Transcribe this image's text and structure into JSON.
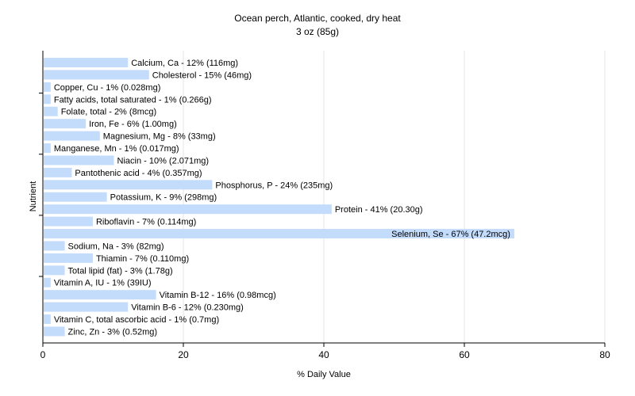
{
  "chart_data": {
    "type": "bar",
    "orientation": "horizontal",
    "title": "Ocean perch, Atlantic, cooked, dry heat",
    "subtitle": "3 oz (85g)",
    "xlabel": "% Daily Value",
    "ylabel": "Nutrient",
    "xlim": [
      0,
      80
    ],
    "xticks": [
      "0",
      "20",
      "40",
      "60",
      "80"
    ],
    "grid": true,
    "bar_color": "#c4dcfc",
    "categories": [
      "Calcium, Ca",
      "Cholesterol",
      "Copper, Cu",
      "Fatty acids, total saturated",
      "Folate, total",
      "Iron, Fe",
      "Magnesium, Mg",
      "Manganese, Mn",
      "Niacin",
      "Pantothenic acid",
      "Phosphorus, P",
      "Potassium, K",
      "Protein",
      "Riboflavin",
      "Selenium, Se",
      "Sodium, Na",
      "Thiamin",
      "Total lipid (fat)",
      "Vitamin A, IU",
      "Vitamin B-12",
      "Vitamin B-6",
      "Vitamin C, total ascorbic acid",
      "Zinc, Zn"
    ],
    "values": [
      12,
      15,
      1,
      1,
      2,
      6,
      8,
      1,
      10,
      4,
      24,
      9,
      41,
      7,
      67,
      3,
      7,
      3,
      1,
      16,
      12,
      1,
      3
    ],
    "labels": [
      "Calcium, Ca - 12% (116mg)",
      "Cholesterol - 15% (46mg)",
      "Copper, Cu - 1% (0.028mg)",
      "Fatty acids, total saturated - 1% (0.266g)",
      "Folate, total - 2% (8mcg)",
      "Iron, Fe - 6% (1.00mg)",
      "Magnesium, Mg - 8% (33mg)",
      "Manganese, Mn - 1% (0.017mg)",
      "Niacin - 10% (2.071mg)",
      "Pantothenic acid - 4% (0.357mg)",
      "Phosphorus, P - 24% (235mg)",
      "Potassium, K - 9% (298mg)",
      "Protein - 41% (20.30g)",
      "Riboflavin - 7% (0.114mg)",
      "Selenium, Se - 67% (47.2mcg)",
      "Sodium, Na - 3% (82mg)",
      "Thiamin - 7% (0.110mg)",
      "Total lipid (fat) - 3% (1.78g)",
      "Vitamin A, IU - 1% (39IU)",
      "Vitamin B-12 - 16% (0.98mcg)",
      "Vitamin B-6 - 12% (0.230mg)",
      "Vitamin C, total ascorbic acid - 1% (0.7mg)",
      "Zinc, Zn - 3% (0.52mg)"
    ]
  }
}
